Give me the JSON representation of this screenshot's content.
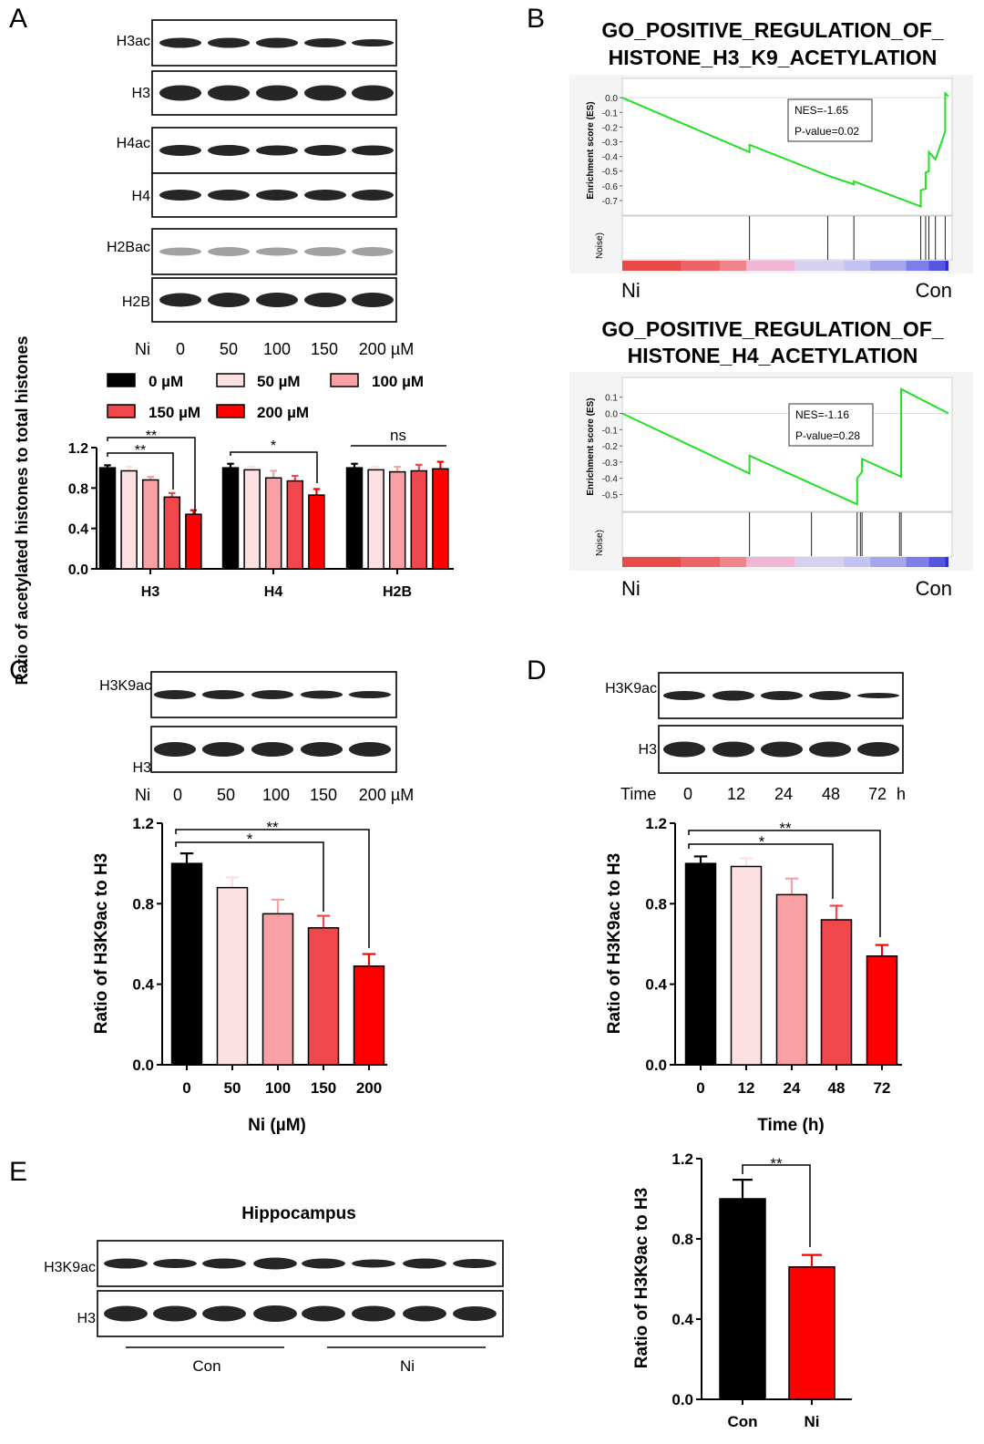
{
  "colors": {
    "c0": "#000000",
    "c50": "#fde0e2",
    "c100": "#f8a0a3",
    "c150": "#f0474c",
    "c200": "#ff0000",
    "con": "#000000",
    "ni": "#ff0000",
    "gsea_line": "#22e022"
  },
  "panel_labels": {
    "a": "A",
    "b": "B",
    "c": "C",
    "d": "D",
    "e": "E"
  },
  "panelA": {
    "blot_labels": [
      "H3ac",
      "H3",
      "H4ac",
      "H4",
      "H2Bac",
      "H2B"
    ],
    "dose_row": {
      "label": "Ni",
      "values": [
        "0",
        "50",
        "100",
        "150",
        "200 µM"
      ]
    },
    "legend": [
      "0 µM",
      "50 µM",
      "100 µM",
      "150 µM",
      "200 µM"
    ],
    "sig": {
      "s1": "**",
      "s2": "**",
      "s3": "*",
      "s4": "ns"
    }
  },
  "panelB": {
    "plot1_title": [
      "GO_POSITIVE_REGULATION_OF_",
      "HISTONE_H3_K9_ACETYLATION"
    ],
    "plot1_ticks": [
      "0.0",
      "-0.1",
      "-0.2",
      "-0.3",
      "-0.4",
      "-0.5",
      "-0.6",
      "-0.7"
    ],
    "plot1_nes": "NES=-1.65",
    "plot1_p": "P-value=0.02",
    "plot2_title": [
      "GO_POSITIVE_REGULATION_OF_",
      "HISTONE_H4_ACETYLATION"
    ],
    "plot2_ticks": [
      "0.1",
      "0.0",
      "-0.1",
      "-0.2",
      "-0.3",
      "-0.4",
      "-0.5"
    ],
    "plot2_nes": "NES=-1.16",
    "plot2_p": "P-value=0.28",
    "es_label": "Enrichment score (ES)",
    "noise_label1": "Noise)",
    "noise_label2": "Noise)",
    "left_label": "Ni",
    "right_label": "Con"
  },
  "panelC": {
    "blot_labels": [
      "H3K9ac",
      "H3"
    ],
    "dose_row": {
      "label": "Ni",
      "values": [
        "0",
        "50",
        "100",
        "150",
        "200 µM"
      ]
    },
    "sig": {
      "s1": "**",
      "s2": "*"
    }
  },
  "panelD": {
    "blot_labels": [
      "H3K9ac",
      "H3"
    ],
    "time_row": {
      "label": "Time",
      "values": [
        "0",
        "12",
        "24",
        "48",
        "72",
        "h"
      ]
    },
    "sig": {
      "s1": "**",
      "s2": "*"
    }
  },
  "panelE": {
    "title": "Hippocampus",
    "blot_labels": [
      "H3K9ac",
      "H3"
    ],
    "group_labels": [
      "Con",
      "Ni"
    ],
    "sig": "**"
  },
  "chart_data": [
    {
      "type": "bar",
      "panel": "A",
      "categories": [
        "H3",
        "H4",
        "H2B"
      ],
      "ylabel": "Ratio of acetylated histones to total histones",
      "ylim": [
        0,
        1.2
      ],
      "yticks": [
        "0.0",
        "0.4",
        "0.8",
        "1.2"
      ],
      "series": [
        {
          "name": "0 µM",
          "values": [
            1.0,
            1.0,
            1.0
          ],
          "errors": [
            0.025,
            0.04,
            0.04
          ]
        },
        {
          "name": "50 µM",
          "values": [
            0.97,
            0.98,
            0.98
          ],
          "errors": [
            0.04,
            0.03,
            0.03
          ]
        },
        {
          "name": "100 µM",
          "values": [
            0.88,
            0.9,
            0.96
          ],
          "errors": [
            0.03,
            0.07,
            0.05
          ]
        },
        {
          "name": "150 µM",
          "values": [
            0.71,
            0.87,
            0.97
          ],
          "errors": [
            0.04,
            0.05,
            0.06
          ]
        },
        {
          "name": "200 µM",
          "values": [
            0.54,
            0.73,
            0.99
          ],
          "errors": [
            0.04,
            0.06,
            0.07
          ]
        }
      ]
    },
    {
      "type": "bar",
      "panel": "C",
      "categories": [
        "0",
        "50",
        "100",
        "150",
        "200"
      ],
      "values": [
        1.0,
        0.88,
        0.75,
        0.68,
        0.49
      ],
      "errors": [
        0.05,
        0.05,
        0.07,
        0.06,
        0.06
      ],
      "xlabel": "Ni (µM)",
      "ylabel": "Ratio of H3K9ac to H3",
      "ylim": [
        0,
        1.2
      ],
      "yticks": [
        "0.0",
        "0.4",
        "0.8",
        "1.2"
      ]
    },
    {
      "type": "bar",
      "panel": "D",
      "categories": [
        "0",
        "12",
        "24",
        "48",
        "72"
      ],
      "values": [
        1.0,
        0.985,
        0.845,
        0.72,
        0.54
      ],
      "errors": [
        0.035,
        0.04,
        0.08,
        0.07,
        0.055
      ],
      "xlabel": "Time (h)",
      "ylabel": "Ratio of H3K9ac to H3",
      "ylim": [
        0,
        1.2
      ],
      "yticks": [
        "0.0",
        "0.4",
        "0.8",
        "1.2"
      ]
    },
    {
      "type": "bar",
      "panel": "E",
      "categories": [
        "Con",
        "Ni"
      ],
      "values": [
        1.0,
        0.66
      ],
      "errors": [
        0.095,
        0.06
      ],
      "ylabel": "Ratio of H3K9ac to H3",
      "ylim": [
        0,
        1.2
      ],
      "yticks": [
        "0.0",
        "0.4",
        "0.8",
        "1.2"
      ]
    },
    {
      "type": "line",
      "panel": "B-top",
      "ylabel": "Enrichment score (ES)",
      "ylim": [
        -0.75,
        0.02
      ],
      "x": [
        0,
        0.39,
        0.39,
        0.63,
        0.71,
        0.71,
        0.915,
        0.915,
        0.93,
        0.93,
        0.94,
        0.94,
        0.96,
        0.99,
        0.99,
        1.0
      ],
      "y": [
        0.0,
        -0.37,
        -0.32,
        -0.53,
        -0.59,
        -0.57,
        -0.74,
        -0.63,
        -0.62,
        -0.51,
        -0.5,
        -0.37,
        -0.42,
        -0.23,
        0.03,
        0.01
      ],
      "hits": [
        0.39,
        0.63,
        0.71,
        0.915,
        0.93,
        0.94,
        0.96,
        0.99
      ],
      "annotation": [
        "NES=-1.65",
        "P-value=0.02"
      ],
      "x_ends": [
        "Ni",
        "Con"
      ]
    },
    {
      "type": "line",
      "panel": "B-bottom",
      "ylabel": "Enrichment score (ES)",
      "ylim": [
        -0.57,
        0.16
      ],
      "x": [
        0,
        0.39,
        0.39,
        0.72,
        0.72,
        0.735,
        0.735,
        0.855,
        0.855,
        1.0
      ],
      "y": [
        0.0,
        -0.37,
        -0.26,
        -0.56,
        -0.4,
        -0.36,
        -0.28,
        -0.39,
        0.15,
        0.0
      ],
      "hits": [
        0.39,
        0.58,
        0.72,
        0.73,
        0.735,
        0.85,
        0.855
      ],
      "annotation": [
        "NES=-1.16",
        "P-value=0.28"
      ],
      "x_ends": [
        "Ni",
        "Con"
      ]
    }
  ]
}
